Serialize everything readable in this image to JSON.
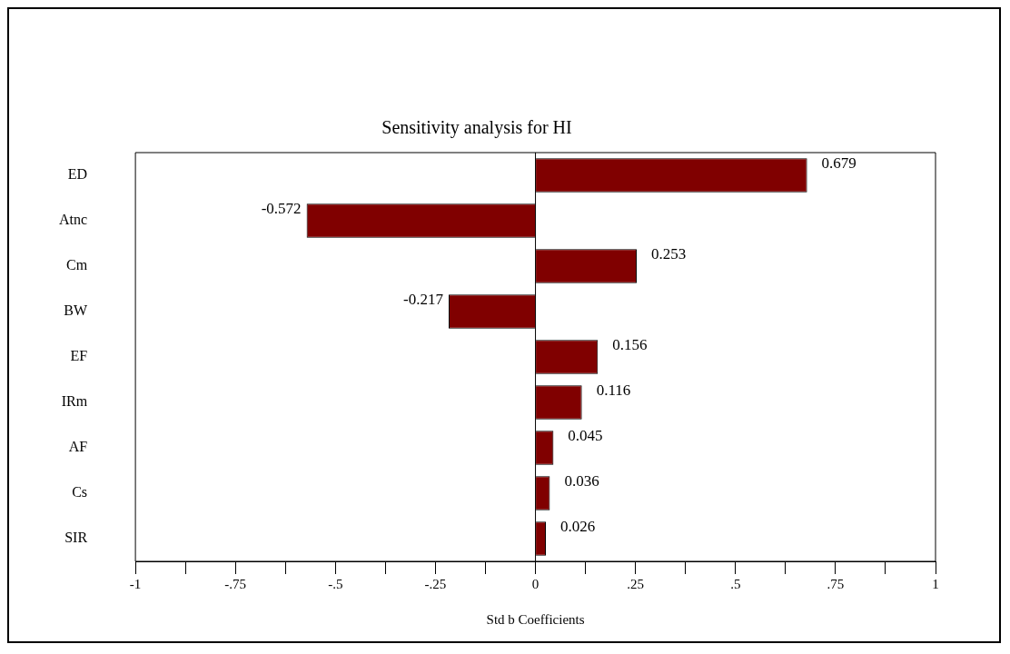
{
  "chart_data": {
    "type": "bar",
    "orientation": "horizontal",
    "title": "Sensitivity analysis for HI",
    "xlabel": "Std b Coefficients",
    "categories": [
      "ED",
      "Atnc",
      "Cm",
      "BW",
      "EF",
      "IRm",
      "AF",
      "Cs",
      "SIR"
    ],
    "values": [
      0.679,
      -0.572,
      0.253,
      -0.217,
      0.156,
      0.116,
      0.045,
      0.036,
      0.026
    ],
    "color": "#800000",
    "xlim": [
      -1,
      1
    ],
    "xticks": [
      {
        "value": -1,
        "label": "-1"
      },
      {
        "value": -0.875,
        "label": null
      },
      {
        "value": -0.75,
        "label": "-.75"
      },
      {
        "value": -0.625,
        "label": null
      },
      {
        "value": -0.5,
        "label": "-.5"
      },
      {
        "value": -0.375,
        "label": null
      },
      {
        "value": -0.25,
        "label": "-.25"
      },
      {
        "value": -0.125,
        "label": null
      },
      {
        "value": 0,
        "label": "0"
      },
      {
        "value": 0.125,
        "label": null
      },
      {
        "value": 0.25,
        "label": ".25"
      },
      {
        "value": 0.375,
        "label": null
      },
      {
        "value": 0.5,
        "label": ".5"
      },
      {
        "value": 0.625,
        "label": null
      },
      {
        "value": 0.75,
        "label": ".75"
      },
      {
        "value": 0.875,
        "label": null
      },
      {
        "value": 1,
        "label": "1"
      }
    ],
    "ref_lines": [
      {
        "axis": "x",
        "value": 0,
        "color": "#000000"
      }
    ],
    "data_labels": true,
    "grid": false,
    "legend": false
  }
}
